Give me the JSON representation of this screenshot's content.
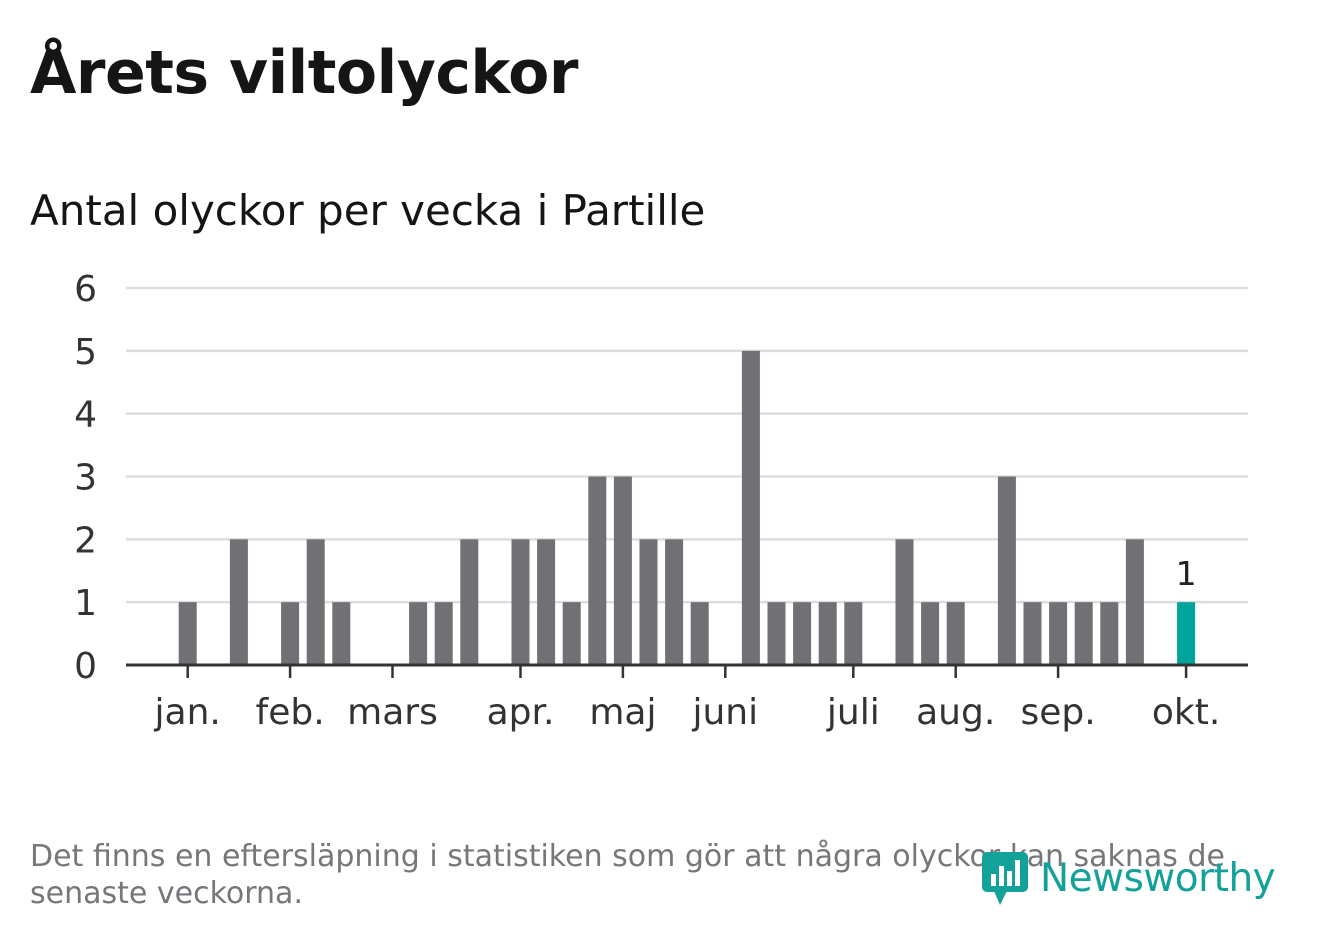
{
  "header": {
    "title": "Årets viltolyckor",
    "subtitle": "Antal olyckor per vecka i Partille"
  },
  "footer": {
    "note": "Det finns en eftersläpning i statistiken som gör att några olyckor kan saknas de senaste veckorna.",
    "logo_text": "Newsworthy"
  },
  "colors": {
    "bar": "#707075",
    "highlight": "#00a49a",
    "grid": "#dddddd",
    "axis": "#333333",
    "text": "#333333"
  },
  "chart_data": {
    "type": "bar",
    "title": "Antal olyckor per vecka i Partille",
    "xlabel": "",
    "ylabel": "",
    "ylim": [
      0,
      6
    ],
    "yticks": [
      0,
      1,
      2,
      3,
      4,
      5,
      6
    ],
    "weeks": [
      1,
      2,
      3,
      4,
      5,
      6,
      7,
      8,
      9,
      10,
      11,
      12,
      13,
      14,
      15,
      16,
      17,
      18,
      19,
      20,
      21,
      22,
      23,
      24,
      25,
      26,
      27,
      28,
      29,
      30,
      31,
      32,
      33,
      34,
      35,
      36,
      37,
      38,
      39,
      40,
      41,
      42,
      43
    ],
    "values": [
      0,
      0,
      1,
      0,
      2,
      0,
      1,
      2,
      1,
      0,
      0,
      1,
      1,
      2,
      0,
      2,
      2,
      1,
      3,
      3,
      2,
      2,
      1,
      0,
      5,
      1,
      1,
      1,
      1,
      0,
      2,
      1,
      1,
      0,
      3,
      1,
      1,
      1,
      1,
      2,
      0,
      1,
      0
    ],
    "highlight_week": 42,
    "highlight_label": "1",
    "month_ticks": [
      {
        "label": "jan.",
        "week": 3
      },
      {
        "label": "feb.",
        "week": 7
      },
      {
        "label": "mars",
        "week": 11
      },
      {
        "label": "apr.",
        "week": 16
      },
      {
        "label": "maj",
        "week": 20
      },
      {
        "label": "juni",
        "week": 24
      },
      {
        "label": "juli",
        "week": 29
      },
      {
        "label": "aug.",
        "week": 33
      },
      {
        "label": "sep.",
        "week": 37
      },
      {
        "label": "okt.",
        "week": 42
      }
    ]
  }
}
